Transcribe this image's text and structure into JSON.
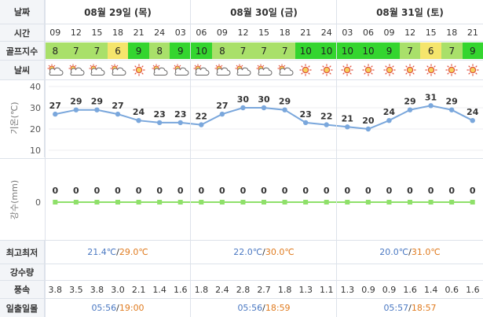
{
  "labels": {
    "date": "날짜",
    "time": "시간",
    "golf_index": "골프지수",
    "weather": "날씨",
    "temperature_axis": "기온(℃)",
    "precip_axis": "강수(mm)",
    "min_max": "최고최저",
    "precip_amount": "강수량",
    "wind_speed": "풍속",
    "sunrise_sunset": "일출일몰"
  },
  "days": [
    "08월 29일 (목)",
    "08월 30일 (금)",
    "08월 31일 (토)"
  ],
  "hours": [
    "09",
    "12",
    "15",
    "18",
    "21",
    "24",
    "03",
    "06",
    "09",
    "12",
    "15",
    "18",
    "21",
    "24",
    "03",
    "06",
    "09",
    "12",
    "15",
    "18",
    "21"
  ],
  "golf": [
    8,
    7,
    7,
    6,
    9,
    8,
    9,
    10,
    8,
    7,
    7,
    7,
    10,
    10,
    10,
    10,
    9,
    7,
    6,
    7,
    9
  ],
  "golf_colors": {
    "6": "#f5e56c",
    "7": "#a9e06a",
    "8": "#a9e06a",
    "9": "#34d52f",
    "10": "#34d52f"
  },
  "weather_icons": [
    "partly-cloudy-icon",
    "partly-cloudy-icon",
    "partly-cloudy-icon",
    "partly-cloudy-icon",
    "sun-icon",
    "partly-cloudy-icon",
    "partly-cloudy-icon",
    "partly-cloudy-icon",
    "partly-cloudy-icon",
    "partly-cloudy-icon",
    "partly-cloudy-icon",
    "partly-cloudy-icon",
    "sun-icon",
    "sun-icon",
    "sun-icon",
    "sun-icon",
    "sun-icon",
    "sun-icon",
    "sun-icon",
    "sun-icon",
    "sun-icon"
  ],
  "chart_data": [
    {
      "type": "line",
      "x": [
        "09",
        "12",
        "15",
        "18",
        "21",
        "24",
        "03",
        "06",
        "09",
        "12",
        "15",
        "18",
        "21",
        "24",
        "03",
        "06",
        "09",
        "12",
        "15",
        "18",
        "21"
      ],
      "series": [
        {
          "values": [
            27,
            29,
            29,
            27,
            24,
            23,
            23,
            22,
            27,
            30,
            30,
            29,
            23,
            22,
            21,
            20,
            24,
            29,
            31,
            29,
            24
          ]
        }
      ],
      "ylabel": "기온(℃)",
      "yticks": [
        10,
        20,
        30,
        40
      ],
      "ylim": [
        10,
        40
      ],
      "line_color": "#7aa7dc"
    },
    {
      "type": "line",
      "x": [
        "09",
        "12",
        "15",
        "18",
        "21",
        "24",
        "03",
        "06",
        "09",
        "12",
        "15",
        "18",
        "21",
        "24",
        "03",
        "06",
        "09",
        "12",
        "15",
        "18",
        "21"
      ],
      "series": [
        {
          "values": [
            0,
            0,
            0,
            0,
            0,
            0,
            0,
            0,
            0,
            0,
            0,
            0,
            0,
            0,
            0,
            0,
            0,
            0,
            0,
            0,
            0
          ]
        }
      ],
      "ylabel": "강수(mm)",
      "yticks": [
        0
      ],
      "line_color": "#8fe06a"
    }
  ],
  "min_max": [
    {
      "min": "21.4℃",
      "max": "29.0℃"
    },
    {
      "min": "22.0℃",
      "max": "30.0℃"
    },
    {
      "min": "20.0℃",
      "max": "31.0℃"
    }
  ],
  "wind": [
    "3.8",
    "3.5",
    "3.8",
    "3.0",
    "2.1",
    "1.4",
    "1.6",
    "1.8",
    "2.4",
    "2.8",
    "2.7",
    "1.8",
    "1.3",
    "1.1",
    "1.3",
    "0.9",
    "0.9",
    "1.6",
    "1.4",
    "0.6",
    "1.6"
  ],
  "sun": [
    {
      "rise": "05:56",
      "set": "19:00"
    },
    {
      "rise": "05:56",
      "set": "18:59"
    },
    {
      "rise": "05:57",
      "set": "18:57"
    }
  ]
}
